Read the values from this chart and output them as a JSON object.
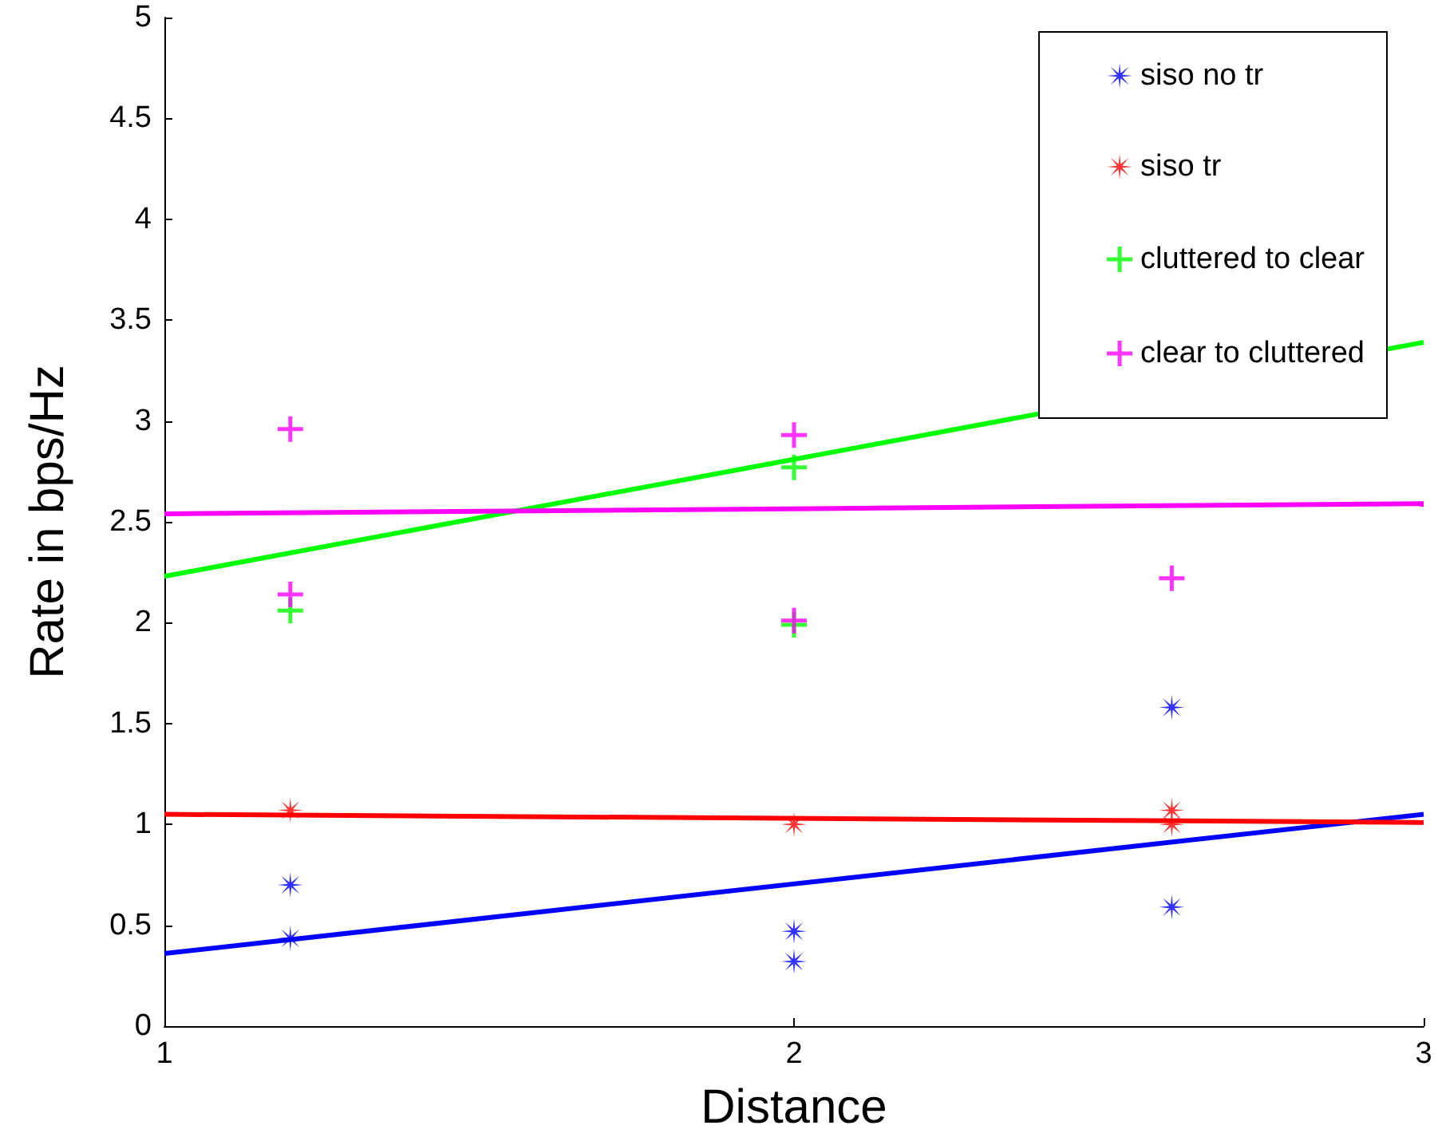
{
  "chart_data": {
    "type": "scatter",
    "xlabel": "Distance",
    "ylabel": "Rate in bps/Hz",
    "xlim": [
      1,
      3
    ],
    "xticks": [
      1,
      2,
      3
    ],
    "ylim": [
      0,
      5
    ],
    "yticks": [
      0,
      0.5,
      1,
      1.5,
      2,
      2.5,
      3,
      3.5,
      4,
      4.5,
      5
    ],
    "grid": false,
    "legend": "top right",
    "series": [
      {
        "name": "siso no tr",
        "marker": "star",
        "color": "#0000ff",
        "x": [
          1.2,
          1.2,
          2,
          2,
          2.6,
          2.6
        ],
        "values": [
          0.7,
          0.435,
          0.47,
          0.32,
          1.58,
          0.59
        ]
      },
      {
        "type": "line",
        "marker": "none",
        "color": "#0000ff",
        "x": [
          1,
          3
        ],
        "values": [
          0.36,
          1.05
        ]
      },
      {
        "name": "siso tr",
        "marker": "star",
        "color": "#ff0000",
        "x": [
          1.2,
          2,
          2.6,
          2.6
        ],
        "values": [
          1.07,
          1.0,
          1.07,
          1.0
        ]
      },
      {
        "type": "line",
        "marker": "none",
        "color": "#ff0000",
        "x": [
          1,
          3
        ],
        "values": [
          1.05,
          1.01
        ]
      },
      {
        "name": "cluttered to clear",
        "marker": "cross",
        "color": "#00ff00",
        "x": [
          1.2,
          2,
          2
        ],
        "values": [
          2.06,
          2.77,
          1.99
        ]
      },
      {
        "type": "line",
        "marker": "none",
        "color": "#00ff00",
        "x": [
          1,
          3
        ],
        "values": [
          2.23,
          3.39
        ]
      },
      {
        "name": "clear to cluttered",
        "marker": "cross",
        "color": "#ff00ff",
        "x": [
          1.2,
          1.2,
          2,
          2,
          2.6
        ],
        "values": [
          2.96,
          2.14,
          2.93,
          2.01,
          2.22
        ]
      },
      {
        "type": "line",
        "marker": "none",
        "color": "#ff00ff",
        "x": [
          1,
          3
        ],
        "values": [
          2.54,
          2.59
        ]
      }
    ]
  }
}
